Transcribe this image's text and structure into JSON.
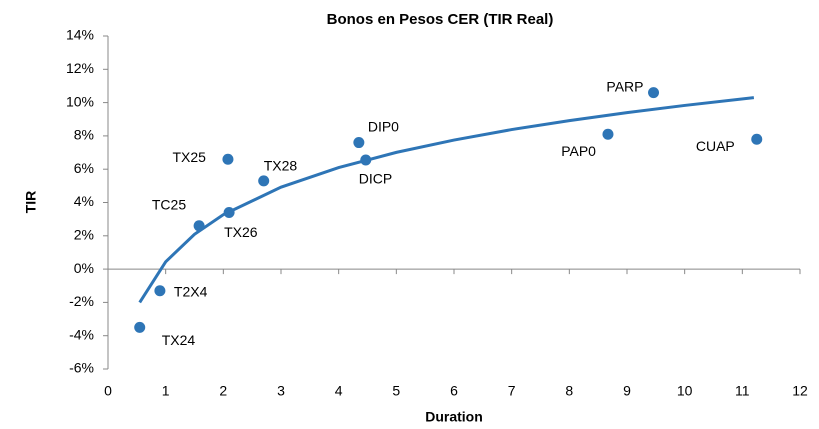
{
  "chart_data": {
    "type": "scatter",
    "title": "Bonos en Pesos CER  (TIR Real)",
    "xlabel": "Duration",
    "ylabel": "TIR",
    "series": [
      {
        "color": "#2e75b6",
        "labels": [
          "TX24",
          "T2X4",
          "TC25",
          "TX26",
          "TX25",
          "TX28",
          "DIP0",
          "DICP",
          "PAP0",
          "PARP",
          "CUAP"
        ],
        "x": [
          0.55,
          0.9,
          1.58,
          2.1,
          2.08,
          2.7,
          4.35,
          4.47,
          8.67,
          9.46,
          11.25
        ],
        "values": [
          -3.5,
          -1.3,
          2.6,
          3.4,
          6.6,
          5.3,
          7.6,
          6.55,
          8.1,
          10.6,
          7.8
        ]
      }
    ],
    "trendline": {
      "color": "#2e75b6",
      "x": [
        0.55,
        1,
        1.5,
        2,
        3,
        4,
        5,
        6,
        7,
        8,
        9,
        10,
        11.2
      ],
      "values": [
        -2.0,
        0.44,
        2.09,
        3.27,
        4.92,
        6.1,
        7.01,
        7.75,
        8.38,
        8.92,
        9.4,
        9.83,
        10.3
      ]
    },
    "xlim": [
      0,
      12
    ],
    "xticks": [
      0,
      1,
      2,
      3,
      4,
      5,
      6,
      7,
      8,
      9,
      10,
      11,
      12
    ],
    "ylim": [
      -6,
      14
    ],
    "yticks": [
      {
        "value": -6,
        "label": "-6%"
      },
      {
        "value": -4,
        "label": "-4%"
      },
      {
        "value": -2,
        "label": "-2%"
      },
      {
        "value": 0,
        "label": "0%"
      },
      {
        "value": 2,
        "label": "2%"
      },
      {
        "value": 4,
        "label": "4%"
      },
      {
        "value": 6,
        "label": "6%"
      },
      {
        "value": 8,
        "label": "8%"
      },
      {
        "value": 10,
        "label": "10%"
      },
      {
        "value": 12,
        "label": "12%"
      },
      {
        "value": 14,
        "label": "14%"
      }
    ],
    "grid": false
  }
}
